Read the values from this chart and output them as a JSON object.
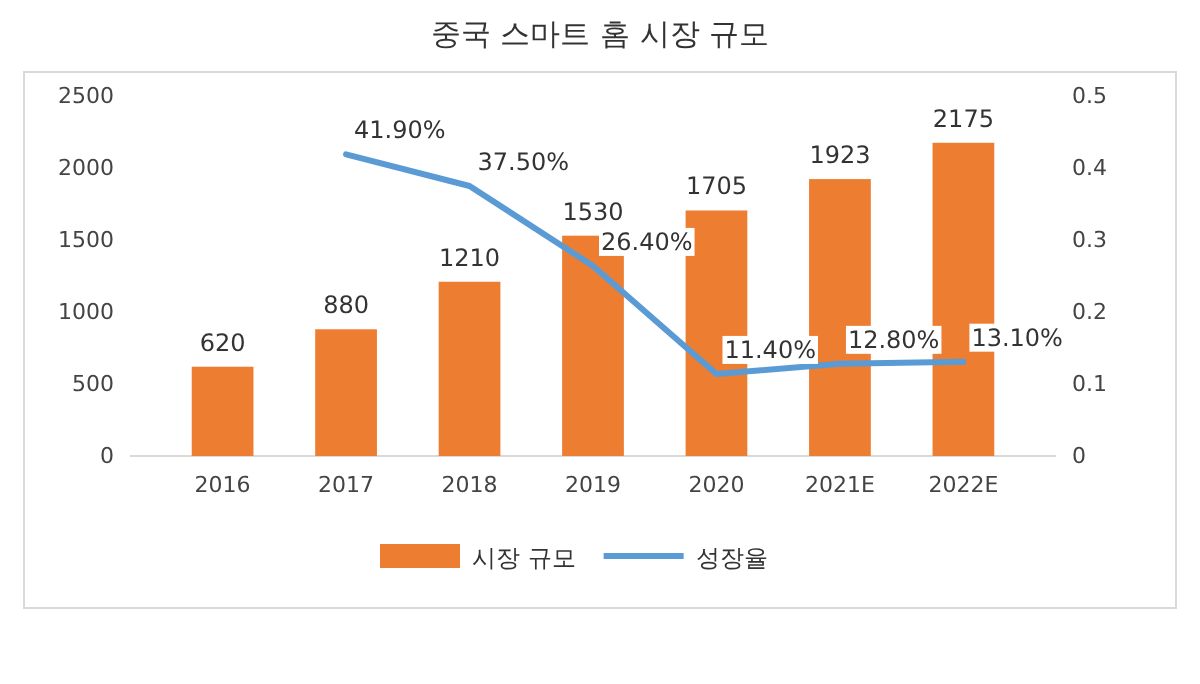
{
  "chart_data": {
    "type": "bar",
    "title": "중국 스마트 홈 시장 규모",
    "categories": [
      "2016",
      "2017",
      "2018",
      "2019",
      "2020",
      "2021E",
      "2022E"
    ],
    "series": [
      {
        "name": "시장 규모",
        "color": "#ed7d31",
        "values": [
          620,
          880,
          1210,
          1530,
          1705,
          1923,
          2175
        ]
      },
      {
        "name": "성장율",
        "type": "line",
        "axis": "y2",
        "color": "#5b9bd5",
        "values": [
          null,
          0.419,
          0.375,
          0.264,
          0.114,
          0.128,
          0.131
        ],
        "value_labels": [
          null,
          "41.90%",
          "37.50%",
          "26.40%",
          "11.40%",
          "12.80%",
          "13.10%"
        ]
      }
    ],
    "data_labels": true,
    "ylim": [
      0,
      2500
    ],
    "yticks": [
      0,
      500,
      1000,
      1500,
      2000,
      2500
    ],
    "y2lim": [
      0,
      0.5
    ],
    "y2ticks": [
      0,
      0.1,
      0.2,
      0.3,
      0.4,
      0.5
    ],
    "legend": "bottom",
    "grid": false,
    "marker": "none",
    "line_style": "solid"
  }
}
